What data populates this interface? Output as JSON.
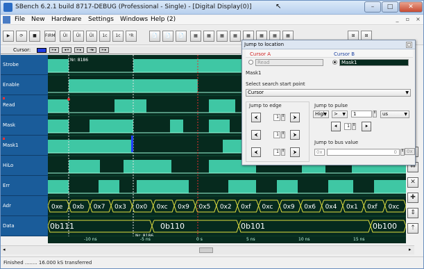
{
  "window": {
    "title": "SBench 6.2.1 build 8717-DEBUG (Professional - Single) - [Digital Display(0)]",
    "min_icon": "minimize-icon",
    "max_icon": "maximize-icon",
    "close_icon": "close-icon",
    "min_label": "–",
    "max_label": "□",
    "close_label": "✕"
  },
  "menu": {
    "items": [
      "File",
      "New",
      "Hardware",
      "Settings",
      "Windows",
      "Help (2)"
    ],
    "mdi_min": "_",
    "mdi_max": "▫",
    "mdi_close": "×"
  },
  "toolbar": {
    "buttons": [
      "▶",
      "⟳",
      "■",
      "FIRMW TRIG",
      "ÛI",
      "ÛI",
      "ÛI",
      "1ᴄ",
      "1ᴄ",
      "ⱽR",
      "📄",
      "📄",
      "📄",
      "▦",
      "▦",
      "▦",
      "▦",
      "▦",
      "▦",
      "▦",
      "▦",
      "⊞",
      "⊞"
    ]
  },
  "cursorbar": {
    "label": "Cursor:",
    "swatch_color": "#1f3be0",
    "buttons": [
      "⇤▸",
      "◂⇥",
      "⇤▸",
      "⇥▸",
      "⇤▸"
    ]
  },
  "signals": [
    {
      "name": "Strobe"
    },
    {
      "name": "Enable"
    },
    {
      "name": "Read",
      "marked": true
    },
    {
      "name": "Mask"
    },
    {
      "name": "Mask1",
      "marked": true
    },
    {
      "name": "HiLo"
    },
    {
      "name": "Err"
    },
    {
      "name": "Adr"
    },
    {
      "name": "Data"
    }
  ],
  "wave": {
    "high_color": "#3fc7a4",
    "line_color": "#9dffdc",
    "bus_color": "#e0e040",
    "marker_text": "Nr: 8186",
    "marker2_text": "Nr: 8186",
    "adr_values": [
      "0xe",
      "0xb",
      "0x7",
      "0x3",
      "0x0",
      "0xc",
      "0x9",
      "0x5",
      "0x2",
      "0xf",
      "0xc",
      "0x9",
      "0x6",
      "0x4",
      "0x1",
      "0xf",
      "0xc"
    ],
    "data_values": [
      "0b111",
      "0b110",
      "0b101",
      "0b100"
    ]
  },
  "axis": {
    "ticks": [
      "-10 ns",
      "-5 ns",
      "0 s",
      "5 ns",
      "10 ns",
      "15 ns"
    ]
  },
  "statusbar": {
    "text": "Finished ........ 16.000 kS transferred"
  },
  "dialog": {
    "title": "Jump to location",
    "cursor_a": "Cursor A",
    "cursor_b": "Cursor B",
    "a_value": "Read",
    "b_value": "Mask1",
    "mask_label": "Mask1",
    "start_label": "Select search start point",
    "start_value": "Cursor",
    "edge_label": "Jump to edge",
    "pulse_label": "Jump to pulse",
    "bus_label": "Jump to bus value",
    "pulse_level": "High",
    "pulse_cmp": ">",
    "pulse_value": "1",
    "pulse_unit": "us",
    "edge_counts": [
      "1",
      "1",
      "1"
    ],
    "pulse_count": "1",
    "bus_prefix": "0x",
    "bus_value": "0",
    "bus_btn": "0x"
  },
  "right_buttons": [
    "↔",
    "⇔",
    "✕",
    "✚",
    "⇕",
    "⇡"
  ],
  "colors": {
    "title_gradient_top": "#dbe9f8",
    "signal_bg": "#1a5c9a",
    "wave_bg": "#062a1e",
    "cursor_a": "#e23030",
    "cursor_b_bg": "#062a1e"
  }
}
